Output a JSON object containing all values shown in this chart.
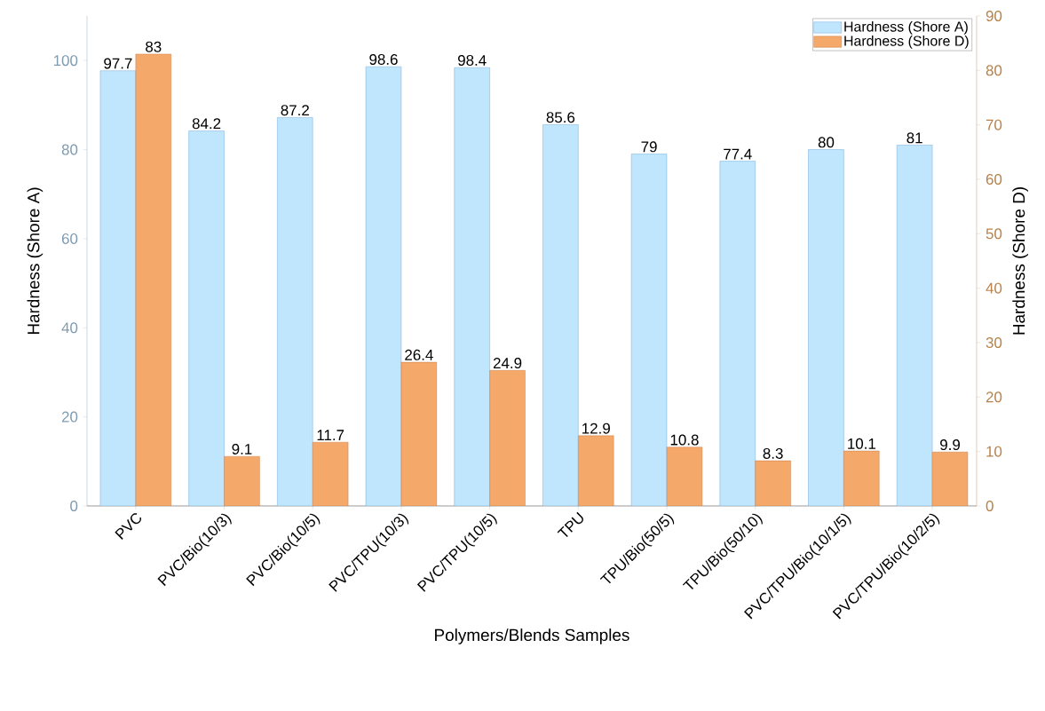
{
  "chart_data": {
    "type": "bar",
    "categories": [
      "PVC",
      "PVC/Bio(10/3)",
      "PVC/Bio(10/5)",
      "PVC/TPU(10/3)",
      "PVC/TPU(10/5)",
      "TPU",
      "TPU/Bio(50/5)",
      "TPU/Bio(50/10)",
      "PVC/TPU/Bio(10/1/5)",
      "PVC/TPU/Bio(10/2/5)"
    ],
    "series": [
      {
        "name": "Hardness (Shore A)",
        "color": "#bfe6fd",
        "values": [
          97.7,
          84.2,
          87.2,
          98.6,
          98.4,
          85.6,
          79,
          77.4,
          80,
          81
        ]
      },
      {
        "name": "Hardness (Shore D)",
        "color": "#f4a869",
        "axis": "y2",
        "values": [
          83,
          9.1,
          11.7,
          26.4,
          24.9,
          12.9,
          10.8,
          8.3,
          10.1,
          9.9
        ]
      }
    ],
    "xlabel": "Polymers/Blends Samples",
    "ylabel": "Hardness (Shore A)",
    "y2label": "Hardness (Shore D)",
    "ylim": [
      0,
      110
    ],
    "yticks": [
      0,
      20,
      40,
      60,
      80,
      100
    ],
    "y2lim": [
      0,
      90
    ],
    "y2ticks": [
      0,
      10,
      20,
      30,
      40,
      50,
      60,
      70,
      80,
      90
    ],
    "data_labels": true,
    "legend": "top right",
    "grid": false
  }
}
